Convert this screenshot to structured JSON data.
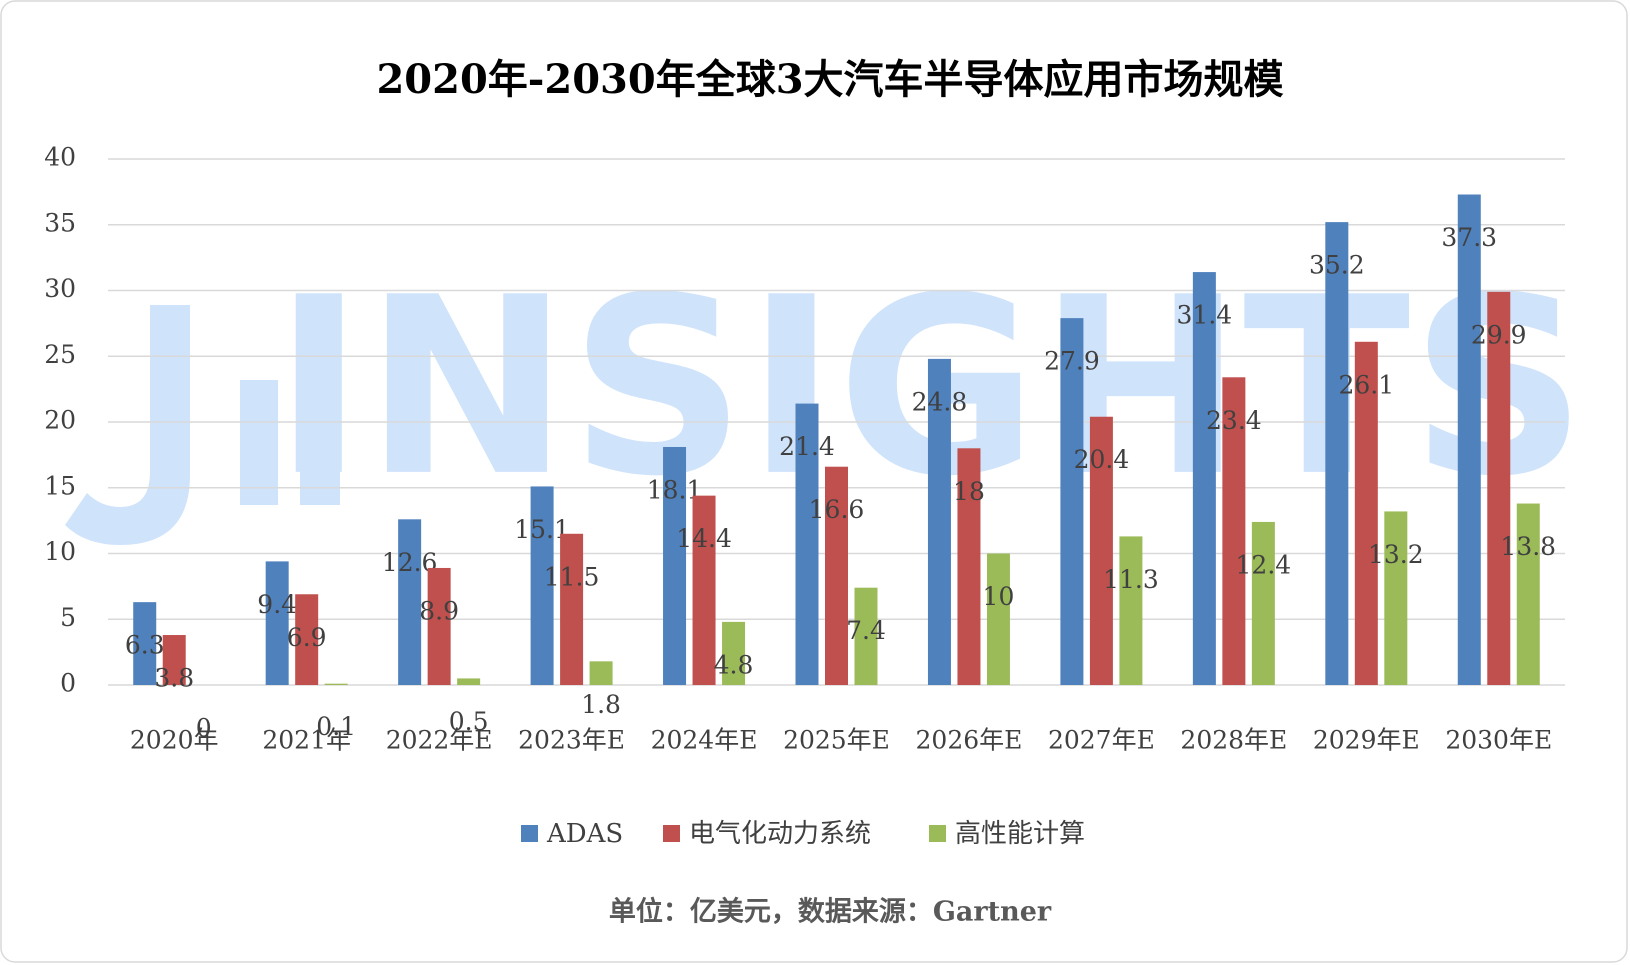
{
  "chart_data": {
    "type": "bar",
    "title": "2020年-2030年全球3大汽车半导体应用市场规模",
    "watermark": "INSIGHTS",
    "note": "单位：亿美元，数据来源：Gartner",
    "categories": [
      "2020年",
      "2021年",
      "2022年E",
      "2023年E",
      "2024年E",
      "2025年E",
      "2026年E",
      "2027年E",
      "2028年E",
      "2029年E",
      "2030年E"
    ],
    "series": [
      {
        "name": "ADAS",
        "color": "#4f81bd",
        "values": [
          6.3,
          9.4,
          12.6,
          15.1,
          18.1,
          21.4,
          24.8,
          27.9,
          31.4,
          35.2,
          37.3
        ]
      },
      {
        "name": "电气化动力系统",
        "color": "#c0504d",
        "values": [
          3.8,
          6.9,
          8.9,
          11.5,
          14.4,
          16.6,
          18,
          20.4,
          23.4,
          26.1,
          29.9
        ]
      },
      {
        "name": "高性能计算",
        "color": "#9bbb59",
        "values": [
          0,
          0.1,
          0.5,
          1.8,
          4.8,
          7.4,
          10,
          11.3,
          12.4,
          13.2,
          13.8
        ]
      }
    ],
    "ylim": [
      0,
      40
    ],
    "yticks": [
      0,
      5,
      10,
      15,
      20,
      25,
      30,
      35,
      40
    ],
    "grid": true,
    "legend": "bottom"
  }
}
